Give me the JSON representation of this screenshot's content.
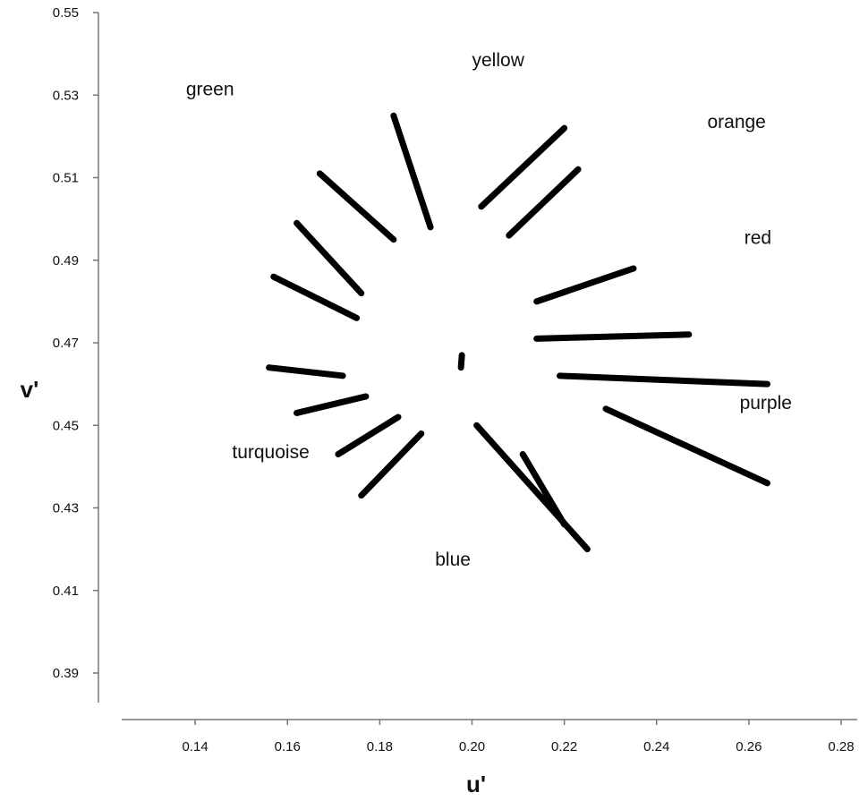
{
  "chart_data": {
    "type": "line",
    "title": "",
    "xlabel": "u'",
    "ylabel": "v'",
    "xlim": [
      0.12,
      0.28
    ],
    "ylim": [
      0.38,
      0.55
    ],
    "x_ticks": [
      0.14,
      0.16,
      0.18,
      0.2,
      0.22,
      0.24,
      0.26,
      0.28
    ],
    "x_tick_labels": [
      "0.14",
      "0.16",
      "0.18",
      "0.20",
      "0.22",
      "0.24",
      "0.26",
      "0.28"
    ],
    "y_ticks": [
      0.39,
      0.41,
      0.43,
      0.45,
      0.47,
      0.49,
      0.51,
      0.53,
      0.55
    ],
    "y_tick_labels": [
      "0.39",
      "0.41",
      "0.43",
      "0.45",
      "0.47",
      "0.49",
      "0.51",
      "0.53",
      "0.55"
    ],
    "grid": false,
    "segments": [
      {
        "x1": 0.1976,
        "y1": 0.464,
        "x2": 0.1978,
        "y2": 0.467
      },
      {
        "x1": 0.202,
        "y1": 0.503,
        "x2": 0.22,
        "y2": 0.522
      },
      {
        "x1": 0.208,
        "y1": 0.496,
        "x2": 0.223,
        "y2": 0.512
      },
      {
        "x1": 0.183,
        "y1": 0.525,
        "x2": 0.191,
        "y2": 0.498
      },
      {
        "x1": 0.167,
        "y1": 0.511,
        "x2": 0.183,
        "y2": 0.495
      },
      {
        "x1": 0.162,
        "y1": 0.499,
        "x2": 0.176,
        "y2": 0.482
      },
      {
        "x1": 0.157,
        "y1": 0.486,
        "x2": 0.175,
        "y2": 0.476
      },
      {
        "x1": 0.214,
        "y1": 0.48,
        "x2": 0.235,
        "y2": 0.488
      },
      {
        "x1": 0.214,
        "y1": 0.471,
        "x2": 0.247,
        "y2": 0.472
      },
      {
        "x1": 0.219,
        "y1": 0.462,
        "x2": 0.264,
        "y2": 0.46
      },
      {
        "x1": 0.229,
        "y1": 0.454,
        "x2": 0.264,
        "y2": 0.436
      },
      {
        "x1": 0.156,
        "y1": 0.464,
        "x2": 0.172,
        "y2": 0.462
      },
      {
        "x1": 0.162,
        "y1": 0.453,
        "x2": 0.177,
        "y2": 0.457
      },
      {
        "x1": 0.171,
        "y1": 0.443,
        "x2": 0.184,
        "y2": 0.452
      },
      {
        "x1": 0.176,
        "y1": 0.433,
        "x2": 0.189,
        "y2": 0.448
      },
      {
        "x1": 0.201,
        "y1": 0.45,
        "x2": 0.225,
        "y2": 0.42
      },
      {
        "x1": 0.211,
        "y1": 0.443,
        "x2": 0.22,
        "y2": 0.426
      }
    ],
    "annotations": [
      {
        "text": "green",
        "x": 0.138,
        "y": 0.53
      },
      {
        "text": "yellow",
        "x": 0.2,
        "y": 0.537
      },
      {
        "text": "orange",
        "x": 0.251,
        "y": 0.522
      },
      {
        "text": "red",
        "x": 0.259,
        "y": 0.494
      },
      {
        "text": "purple",
        "x": 0.258,
        "y": 0.454
      },
      {
        "text": "turquoise",
        "x": 0.148,
        "y": 0.442
      },
      {
        "text": "blue",
        "x": 0.192,
        "y": 0.416
      }
    ]
  }
}
